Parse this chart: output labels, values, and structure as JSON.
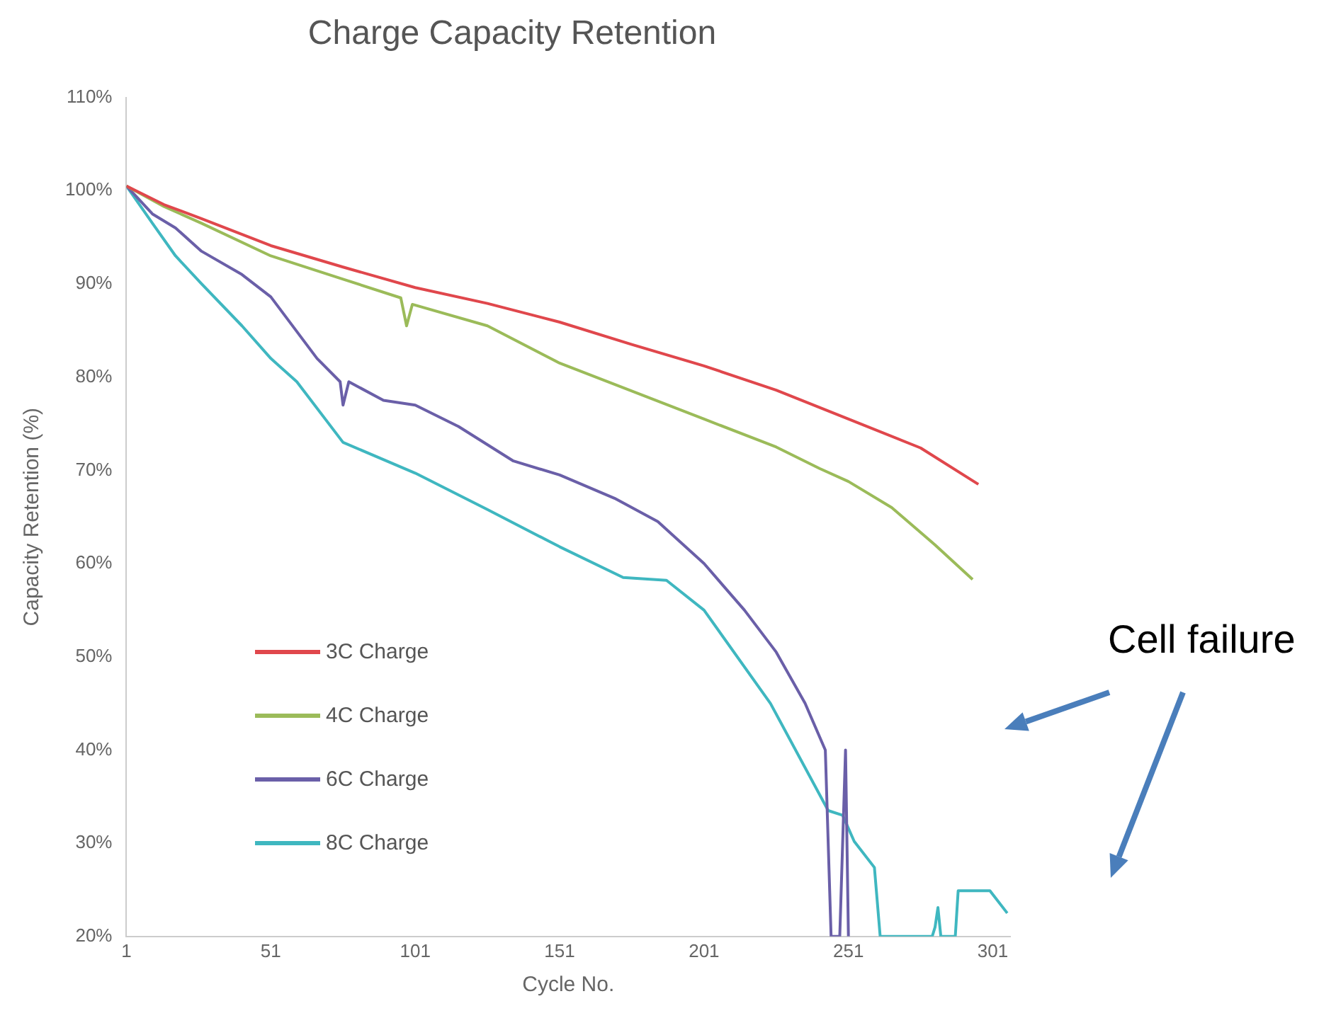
{
  "chart_data": {
    "type": "line",
    "title": "Charge Capacity Retention",
    "xlabel": "Cycle No.",
    "ylabel": "Capacity Retention (%)",
    "xlim": [
      1,
      307
    ],
    "xticks": [
      1,
      51,
      101,
      151,
      201,
      251,
      301
    ],
    "ylim": [
      20,
      110
    ],
    "yticks": [
      {
        "value": 20,
        "label": "20%"
      },
      {
        "value": 30,
        "label": "30%"
      },
      {
        "value": 40,
        "label": "40%"
      },
      {
        "value": 50,
        "label": "50%"
      },
      {
        "value": 60,
        "label": "60%"
      },
      {
        "value": 70,
        "label": "70%"
      },
      {
        "value": 80,
        "label": "80%"
      },
      {
        "value": 90,
        "label": "90%"
      },
      {
        "value": 100,
        "label": "100%"
      },
      {
        "value": 110,
        "label": "110%"
      }
    ],
    "grid": false,
    "legend": "bottom left",
    "marker": "none",
    "line_style": "solid",
    "annotations": [
      "Cell failure"
    ],
    "series": [
      {
        "name": "3C Charge",
        "color": "#e0474c",
        "x": [
          1,
          14,
          27,
          51,
          76,
          101,
          126,
          151,
          176,
          201,
          226,
          251,
          276,
          296
        ],
        "values": [
          100.5,
          98.5,
          97,
          94.1,
          91.8,
          89.6,
          87.9,
          85.9,
          83.5,
          81.2,
          78.6,
          75.5,
          72.4,
          68.5
        ]
      },
      {
        "name": "4C Charge",
        "color": "#9bbb59",
        "x": [
          1,
          14,
          27,
          51,
          76,
          96,
          98,
          100,
          126,
          151,
          176,
          201,
          226,
          241,
          251,
          266,
          281,
          294
        ],
        "values": [
          100.5,
          98.3,
          96.5,
          93,
          90.5,
          88.5,
          85.5,
          87.8,
          85.5,
          81.5,
          78.5,
          75.5,
          72.5,
          70.2,
          68.8,
          66,
          62,
          58.3
        ]
      },
      {
        "name": "6C Charge",
        "color": "#6a5fa8",
        "x": [
          1,
          10,
          18,
          27,
          41,
          51,
          67,
          75,
          76,
          78,
          90,
          101,
          116,
          135,
          151,
          170,
          185,
          201,
          215,
          226,
          236,
          243,
          245,
          248,
          250,
          251
        ],
        "values": [
          100.5,
          97.5,
          96,
          93.5,
          91,
          88.6,
          82,
          79.5,
          77,
          79.5,
          77.5,
          77,
          74.7,
          71,
          69.5,
          67,
          64.5,
          60,
          55,
          50.5,
          45,
          40,
          20,
          20,
          40,
          20
        ]
      },
      {
        "name": "8C Charge",
        "color": "#3fb7c0",
        "x": [
          1,
          10,
          18,
          27,
          41,
          51,
          60,
          76,
          101,
          126,
          151,
          173,
          188,
          201,
          224,
          244,
          249,
          253,
          260,
          262,
          280,
          281,
          282,
          283,
          288,
          289,
          300,
          306
        ],
        "values": [
          100.5,
          96.5,
          93,
          90,
          85.5,
          82,
          79.5,
          73,
          69.7,
          65.8,
          61.8,
          58.5,
          58.2,
          55,
          45,
          33.5,
          33,
          30.2,
          27.4,
          20,
          20,
          21,
          23.1,
          20,
          20,
          24.9,
          24.9,
          22.5
        ]
      }
    ]
  }
}
